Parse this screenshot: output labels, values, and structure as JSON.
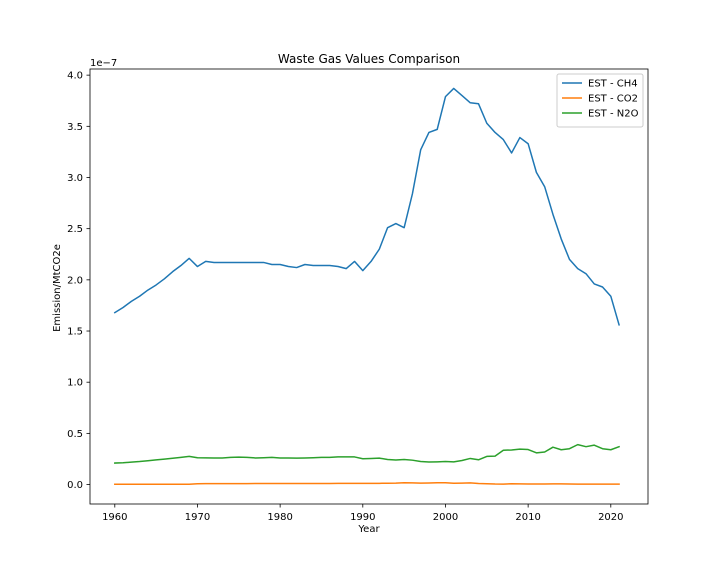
{
  "chart_data": {
    "type": "line",
    "title": "Waste Gas Values Comparison",
    "xlabel": "Year",
    "ylabel": "Emission/MtCO2e",
    "y_offset_label": "1e−7",
    "xlim": [
      1957,
      2024.5
    ],
    "ylim": [
      -0.19,
      4.06
    ],
    "y_scale_note": "values in units of 1e-7",
    "x_ticks": [
      1960,
      1970,
      1980,
      1990,
      2000,
      2010,
      2020
    ],
    "y_ticks": [
      0.0,
      0.5,
      1.0,
      1.5,
      2.0,
      2.5,
      3.0,
      3.5,
      4.0
    ],
    "y_tick_labels": [
      "0.0",
      "0.5",
      "1.0",
      "1.5",
      "2.0",
      "2.5",
      "3.0",
      "3.5",
      "4.0"
    ],
    "grid": false,
    "legend_position": "top-right",
    "x": [
      1960,
      1961,
      1962,
      1963,
      1964,
      1965,
      1966,
      1967,
      1968,
      1969,
      1970,
      1971,
      1972,
      1973,
      1974,
      1975,
      1976,
      1977,
      1978,
      1979,
      1980,
      1981,
      1982,
      1983,
      1984,
      1985,
      1986,
      1987,
      1988,
      1989,
      1990,
      1991,
      1992,
      1993,
      1994,
      1995,
      1996,
      1997,
      1998,
      1999,
      2000,
      2001,
      2002,
      2003,
      2004,
      2005,
      2006,
      2007,
      2008,
      2009,
      2010,
      2011,
      2012,
      2013,
      2014,
      2015,
      2016,
      2017,
      2018,
      2019,
      2020,
      2021
    ],
    "series": [
      {
        "name": "EST - CH4",
        "color": "#1f77b4",
        "values": [
          1.68,
          1.73,
          1.79,
          1.84,
          1.9,
          1.95,
          2.01,
          2.08,
          2.14,
          2.21,
          2.13,
          2.18,
          2.17,
          2.17,
          2.17,
          2.17,
          2.17,
          2.17,
          2.17,
          2.15,
          2.15,
          2.13,
          2.12,
          2.15,
          2.14,
          2.14,
          2.14,
          2.13,
          2.11,
          2.18,
          2.09,
          2.18,
          2.3,
          2.51,
          2.55,
          2.51,
          2.84,
          3.27,
          3.44,
          3.47,
          3.79,
          3.87,
          3.8,
          3.73,
          3.72,
          3.53,
          3.44,
          3.37,
          3.24,
          3.39,
          3.33,
          3.05,
          2.91,
          2.64,
          2.4,
          2.2,
          2.11,
          2.06,
          1.96,
          1.93,
          1.84,
          1.56
        ]
      },
      {
        "name": "EST - CO2",
        "color": "#ff7f0e",
        "values": [
          0.003,
          0.003,
          0.003,
          0.003,
          0.003,
          0.003,
          0.003,
          0.003,
          0.003,
          0.003,
          0.008,
          0.009,
          0.009,
          0.009,
          0.009,
          0.009,
          0.009,
          0.01,
          0.01,
          0.01,
          0.01,
          0.01,
          0.01,
          0.01,
          0.01,
          0.01,
          0.01,
          0.011,
          0.011,
          0.011,
          0.011,
          0.012,
          0.012,
          0.013,
          0.014,
          0.017,
          0.016,
          0.014,
          0.015,
          0.017,
          0.017,
          0.013,
          0.014,
          0.016,
          0.01,
          0.008,
          0.005,
          0.004,
          0.008,
          0.007,
          0.006,
          0.006,
          0.006,
          0.007,
          0.007,
          0.005,
          0.004,
          0.004,
          0.004,
          0.004,
          0.004,
          0.004
        ]
      },
      {
        "name": "EST - N2O",
        "color": "#2ca02c",
        "values": [
          0.21,
          0.213,
          0.219,
          0.225,
          0.233,
          0.241,
          0.249,
          0.257,
          0.266,
          0.275,
          0.262,
          0.261,
          0.26,
          0.26,
          0.265,
          0.268,
          0.265,
          0.26,
          0.262,
          0.265,
          0.26,
          0.26,
          0.258,
          0.26,
          0.262,
          0.265,
          0.265,
          0.27,
          0.27,
          0.27,
          0.252,
          0.255,
          0.258,
          0.245,
          0.24,
          0.245,
          0.238,
          0.225,
          0.22,
          0.222,
          0.225,
          0.222,
          0.235,
          0.255,
          0.242,
          0.275,
          0.278,
          0.335,
          0.338,
          0.346,
          0.342,
          0.31,
          0.318,
          0.365,
          0.34,
          0.35,
          0.39,
          0.37,
          0.385,
          0.35,
          0.34,
          0.37
        ]
      }
    ]
  }
}
